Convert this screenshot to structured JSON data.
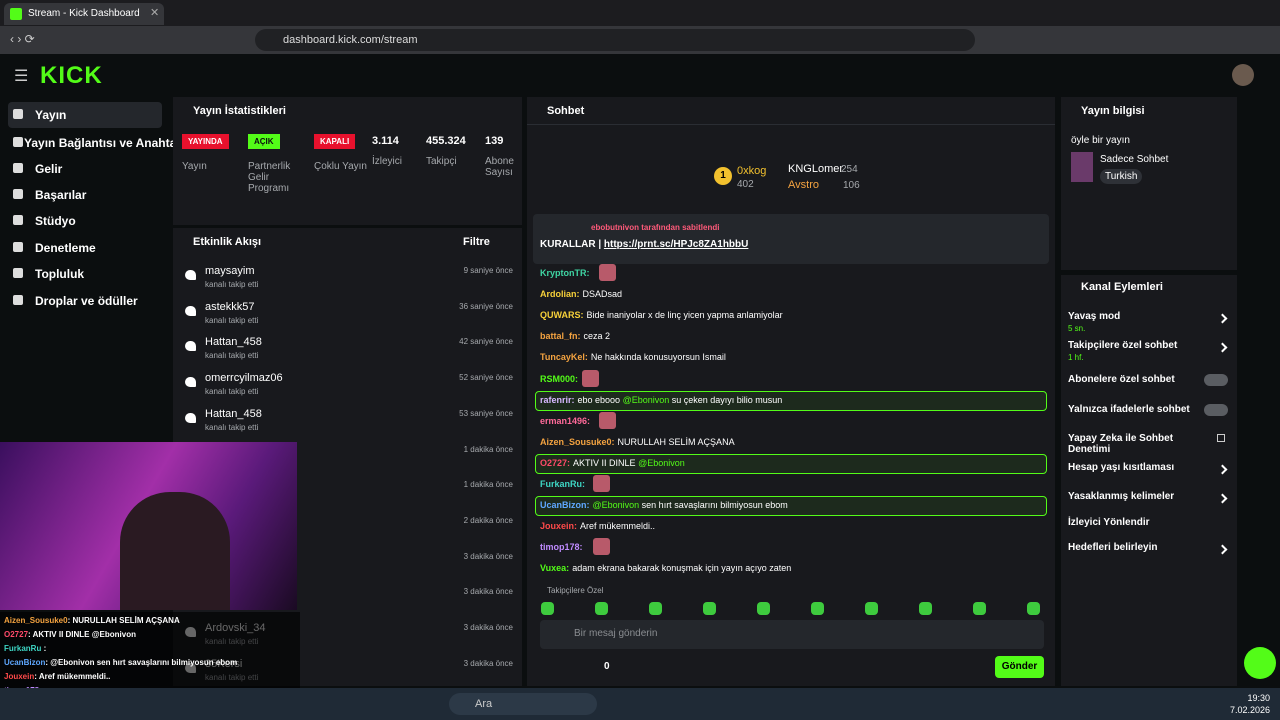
{
  "browser": {
    "tab_title": "Stream - Kick Dashboard",
    "url": "dashboard.kick.com/stream"
  },
  "sidebar": {
    "logo": "KICK",
    "items": [
      "Yayın",
      "Yayın Bağlantısı ve Anahtarı",
      "Gelir",
      "Başarılar",
      "Stüdyo",
      "Denetleme",
      "Topluluk",
      "Droplar ve ödüller"
    ]
  },
  "stats": {
    "title": "Yayın İstatistikleri",
    "badges": [
      {
        "badge": "YAYINDA",
        "label": "Yayın",
        "color": "#e8112d"
      },
      {
        "badge": "AÇIK",
        "label": "Partnerlik Gelir Programı",
        "color": "#53fc18"
      },
      {
        "badge": "KAPALI",
        "label": "Çoklu Yayın",
        "color": "#e8112d"
      }
    ],
    "numbers": [
      {
        "value": "3.114",
        "label": "İzleyici"
      },
      {
        "value": "455.324",
        "label": "Takipçi"
      },
      {
        "value": "139",
        "label": "Abone Sayısı"
      }
    ]
  },
  "activity": {
    "title": "Etkinlik Akışı",
    "filter": "Filtre",
    "events": [
      {
        "user": "maysayim",
        "action": "kanalı takip etti",
        "time": "9 saniye önce"
      },
      {
        "user": "astekkk57",
        "action": "kanalı takip etti",
        "time": "36 saniye önce"
      },
      {
        "user": "Hattan_458",
        "action": "kanalı takip etti",
        "time": "42 saniye önce"
      },
      {
        "user": "omerrcyilmaz06",
        "action": "kanalı takip etti",
        "time": "52 saniye önce"
      },
      {
        "user": "Hattan_458",
        "action": "kanalı takip etti",
        "time": "53 saniye önce"
      },
      {
        "time": "1 dakika önce"
      },
      {
        "time": "1 dakika önce"
      },
      {
        "time": "2 dakika önce"
      },
      {
        "time": "3 dakika önce"
      },
      {
        "time": "3 dakika önce"
      },
      {
        "user": "Ardovski_34",
        "action": "kanalı takip etti",
        "time": "3 dakika önce"
      },
      {
        "user": "35Kersi",
        "action": "kanalı takip etti",
        "time": "3 dakika önce"
      }
    ]
  },
  "overlay_chat": [
    {
      "user": "Aizen_Sousuke0",
      "text": ": NURULLAH SELİM AÇŞANA",
      "color": "#f4a340"
    },
    {
      "user": "O2727",
      "text": ": AKTIV II DINLE @Ebonivon",
      "color": "#ff4a6a"
    },
    {
      "user": "FurkanRu",
      "text": " :",
      "color": "#3ed6c4"
    },
    {
      "user": "UcanBizon",
      "text": ": @Ebonivon sen hırt savaşlarını bilmiyosun ebom",
      "color": "#5fa8ff"
    },
    {
      "user": "Jouxein",
      "text": ": Aref mükemmeldi..",
      "color": "#ff4a4a"
    },
    {
      "user": "timop178",
      "text": " :",
      "color": "#c08bff"
    }
  ],
  "chat": {
    "title": "Sohbet",
    "leaders": [
      {
        "rank": "1",
        "name": "0xkog",
        "count": "402"
      },
      {
        "name": "KNGLomer",
        "count": "254"
      },
      {
        "name": "Avstro",
        "count": "106"
      }
    ],
    "pinned_by": "ebobutnivon tarafından sabitlendi",
    "pinned_text": "KURALLAR | ",
    "pinned_link": "https://prnt.sc/HPJc8ZA1hbbU",
    "messages": [
      {
        "user": "KryptonTR:",
        "color": "#3fd6a4",
        "text": [],
        "emote": true
      },
      {
        "user": "Ardolian:",
        "color": "#f7d13a",
        "text": [
          "DSADsad"
        ]
      },
      {
        "user": "QUWARS:",
        "color": "#f7d13a",
        "text": [
          "Bide inaniyolar x de linç yicen yapma anlamiyolar"
        ]
      },
      {
        "user": "battal_fn:",
        "color": "#f4a340",
        "text": [
          "ceza 2"
        ]
      },
      {
        "user": "TuncayKel:",
        "color": "#f4a340",
        "text": [
          "Ne hakkında konusuyorsun Ismail"
        ]
      },
      {
        "user": "RSM000:",
        "color": "#53fc18",
        "text": [],
        "emote": true
      },
      {
        "user": "rafenrir:",
        "color": "#d7b8ff",
        "text": [
          "ebo ebooo ",
          "@Ebonivon",
          " su çeken dayıyı bilio musun"
        ],
        "highlight": true
      },
      {
        "user": "erman1496:",
        "color": "#ff6a9a",
        "text": [],
        "emote": true
      },
      {
        "user": "Aizen_Sousuke0:",
        "color": "#f4a340",
        "text": [
          "NURULLAH SELİM AÇŞANA"
        ]
      },
      {
        "user": "O2727:",
        "color": "#ff4a6a",
        "text": [
          "AKTIV II DINLE ",
          "@Ebonivon"
        ],
        "highlight": true
      },
      {
        "user": "FurkanRu:",
        "color": "#3ed6c4",
        "text": [],
        "emote": true
      },
      {
        "user": "UcanBizon:",
        "color": "#5fa8ff",
        "text": [
          "@Ebonivon",
          " sen hırt savaşlarını bilmiyosun ebom"
        ],
        "highlight": true
      },
      {
        "user": "Jouxein:",
        "color": "#ff4a4a",
        "text": [
          "Aref mükemmeldi.."
        ]
      },
      {
        "user": "timop178:",
        "color": "#c08bff",
        "text": [],
        "emote": true
      },
      {
        "user": "Vuxea:",
        "color": "#53fc18",
        "text": [
          "adam ekrana bakarak konuşmak için yayın açıyo zaten"
        ]
      }
    ],
    "followers_only": "Takipçilere Özel",
    "placeholder": "Bir mesaj gönderin",
    "points": "0",
    "send": "Gönder"
  },
  "stream_info": {
    "title": "Yayın bilgisi",
    "stream_title": "öyle bir yayın",
    "category": "Sadece Sohbet",
    "language": "Turkish"
  },
  "actions": {
    "title": "Kanal Eylemleri",
    "items": [
      {
        "label": "Yavaş mod",
        "sub": "5 sn.",
        "control": "arrow"
      },
      {
        "label": "Takipçilere özel sohbet",
        "sub": "1 hf.",
        "control": "arrow"
      },
      {
        "label": "Abonelere özel sohbet",
        "control": "toggle"
      },
      {
        "label": "Yalnızca ifadelerle sohbet",
        "control": "toggle"
      },
      {
        "label": "Yapay Zeka ile Sohbet Denetimi",
        "control": "external"
      },
      {
        "label": "Hesap yaşı kısıtlaması",
        "control": "arrow"
      },
      {
        "label": "Yasaklanmış kelimeler",
        "control": "arrow"
      },
      {
        "label": "İzleyici Yönlendir",
        "control": "none"
      },
      {
        "label": "Hedefleri belirleyin",
        "control": "arrow"
      }
    ]
  },
  "taskbar": {
    "search": "Ara",
    "time": "19:30",
    "date": "7.02.2026"
  }
}
